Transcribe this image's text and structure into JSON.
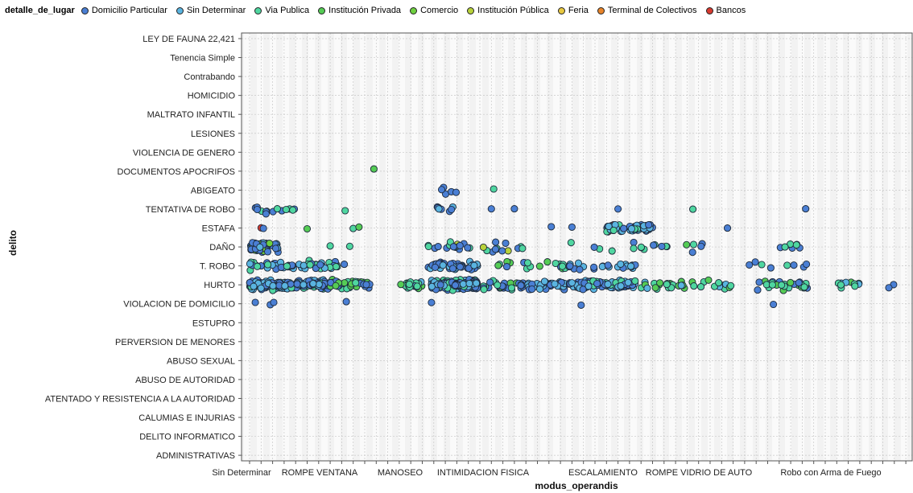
{
  "chart_data": {
    "type": "scatter",
    "xlabel": "modus_operandis",
    "ylabel": "delito",
    "legend": {
      "title": "detalle_de_lugar",
      "placement": "top-left",
      "entries": [
        {
          "name": "Domicilio Particular",
          "color": "#4a7fd4"
        },
        {
          "name": "Sin Determinar",
          "color": "#5ab4e0"
        },
        {
          "name": "Via Publica",
          "color": "#4fd6a0"
        },
        {
          "name": "Institución Privada",
          "color": "#55cc55"
        },
        {
          "name": "Comercio",
          "color": "#6ed040"
        },
        {
          "name": "Institución Pública",
          "color": "#b8d23a"
        },
        {
          "name": "Feria",
          "color": "#e8c840"
        },
        {
          "name": "Terminal de Colectivos",
          "color": "#e8842a"
        },
        {
          "name": "Bancos",
          "color": "#d83a30"
        }
      ]
    },
    "x_tick_labels": [
      "Sin Determinar",
      "ROMPE VENTANA",
      "MANOSEO",
      "INTIMIDACION FISICA",
      "ESCALAMIENTO",
      "ROMPE VIDRIO DE AUTO",
      "Robo con Arma de Fuego"
    ],
    "y_categories": [
      "LEY DE FAUNA 22,421",
      "Tenencia Simple",
      "Contrabando",
      "HOMICIDIO",
      "MALTRATO INFANTIL",
      "LESIONES",
      "VIOLENCIA DE GENERO",
      "DOCUMENTOS APOCRIFOS",
      "ABIGEATO",
      "TENTATIVA DE ROBO",
      "ESTAFA",
      "DAÑO",
      "T. ROBO",
      "HURTO",
      "VIOLACION DE DOMICILIO",
      "ESTUPRO",
      "PERVERSION DE MENORES",
      "ABUSO SEXUAL",
      "ABUSO DE AUTORIDAD",
      "ATENTADO Y RESISTENCIA A LA AUTORIDAD",
      "CALUMIAS E INJURIAS",
      "DELITO INFORMATICO",
      "ADMINISTRATIVAS"
    ],
    "grid": true,
    "jitter": true,
    "clusters": [
      {
        "delito": "HURTO",
        "x_range": [
          0.0,
          7.0
        ],
        "count": 220,
        "series": [
          "Domicilio Particular",
          "Sin Determinar",
          "Via Publica"
        ]
      },
      {
        "delito": "HURTO",
        "x_range": [
          7.0,
          10.5
        ],
        "count": 40,
        "series": [
          "Domicilio Particular",
          "Via Publica",
          "Institución Privada"
        ]
      },
      {
        "delito": "HURTO",
        "x_range": [
          13.0,
          15.0
        ],
        "count": 22,
        "series": [
          "Via Publica",
          "Institución Privada",
          "Sin Determinar"
        ]
      },
      {
        "delito": "HURTO",
        "x_range": [
          15.8,
          19.8
        ],
        "count": 200,
        "series": [
          "Domicilio Particular",
          "Sin Determinar",
          "Via Publica"
        ]
      },
      {
        "delito": "HURTO",
        "x_range": [
          20.0,
          23.5
        ],
        "count": 22,
        "series": [
          "Via Publica",
          "Domicilio Particular",
          "Institución Privada"
        ]
      },
      {
        "delito": "HURTO",
        "x_range": [
          23.5,
          27.5
        ],
        "count": 50,
        "series": [
          "Domicilio Particular",
          "Sin Determinar"
        ]
      },
      {
        "delito": "HURTO",
        "x_range": [
          27.5,
          33.5
        ],
        "count": 100,
        "series": [
          "Domicilio Particular",
          "Sin Determinar",
          "Via Publica"
        ]
      },
      {
        "delito": "HURTO",
        "x_range": [
          34.0,
          42.0
        ],
        "count": 35,
        "series": [
          "Via Publica",
          "Institución Privada",
          "Sin Determinar"
        ]
      },
      {
        "delito": "HURTO",
        "x_range": [
          44.0,
          48.5
        ],
        "count": 30,
        "series": [
          "Domicilio Particular",
          "Via Publica",
          "Institución Privada"
        ]
      },
      {
        "delito": "HURTO",
        "x_range": [
          49.5,
          53.0
        ],
        "count": 10,
        "series": [
          "Via Publica",
          "Institución Privada",
          "Sin Determinar"
        ]
      },
      {
        "delito": "HURTO",
        "x_range": [
          55.5,
          56.0
        ],
        "count": 2,
        "series": [
          "Domicilio Particular"
        ]
      },
      {
        "delito": "DAÑO",
        "x_range": [
          0.0,
          2.5
        ],
        "count": 60,
        "series": [
          "Domicilio Particular",
          "Sin Determinar",
          "Comercio"
        ]
      },
      {
        "delito": "DAÑO",
        "x_range": [
          15.5,
          24.0
        ],
        "count": 30,
        "series": [
          "Domicilio Particular",
          "Via Publica",
          "Institución Pública"
        ]
      },
      {
        "delito": "DAÑO",
        "x_range": [
          27.0,
          40.0
        ],
        "count": 18,
        "series": [
          "Domicilio Particular",
          "Via Publica",
          "Institución Privada"
        ]
      },
      {
        "delito": "DAÑO",
        "x_range": [
          43.5,
          48.5
        ],
        "count": 5,
        "series": [
          "Domicilio Particular",
          "Via Publica"
        ]
      },
      {
        "delito": "T. ROBO",
        "x_range": [
          0.0,
          8.5
        ],
        "count": 60,
        "series": [
          "Domicilio Particular",
          "Sin Determinar",
          "Via Publica"
        ]
      },
      {
        "delito": "T. ROBO",
        "x_range": [
          15.5,
          19.8
        ],
        "count": 40,
        "series": [
          "Domicilio Particular",
          "Sin Determinar"
        ]
      },
      {
        "delito": "T. ROBO",
        "x_range": [
          20.0,
          27.5
        ],
        "count": 18,
        "series": [
          "Via Publica",
          "Domicilio Particular",
          "Institución Privada"
        ]
      },
      {
        "delito": "T. ROBO",
        "x_range": [
          27.5,
          33.5
        ],
        "count": 25,
        "series": [
          "Domicilio Particular",
          "Sin Determinar"
        ]
      },
      {
        "delito": "T. ROBO",
        "x_range": [
          41.0,
          48.5
        ],
        "count": 8,
        "series": [
          "Domicilio Particular",
          "Via Publica"
        ]
      },
      {
        "delito": "ESTAFA",
        "x_range": [
          31.0,
          35.0
        ],
        "count": 70,
        "series": [
          "Domicilio Particular",
          "Sin Determinar",
          "Via Publica",
          "Bancos"
        ]
      },
      {
        "delito": "TENTATIVA DE ROBO",
        "x_range": [
          0.5,
          4.0
        ],
        "count": 14,
        "series": [
          "Domicilio Particular",
          "Via Publica"
        ]
      },
      {
        "delito": "TENTATIVA DE ROBO",
        "x_range": [
          15.5,
          18.0
        ],
        "count": 8,
        "series": [
          "Domicilio Particular",
          "Sin Determinar"
        ]
      },
      {
        "delito": "ABIGEATO",
        "x_range": [
          16.5,
          18.0
        ],
        "count": 5,
        "series": [
          "Domicilio Particular"
        ]
      }
    ],
    "points": [
      {
        "x": 1.0,
        "delito": "ESTAFA",
        "series": "Bancos"
      },
      {
        "x": 1.2,
        "delito": "ESTAFA",
        "series": "Domicilio Particular"
      },
      {
        "x": 10.8,
        "delito": "DOCUMENTOS APOCRIFOS",
        "series": "Institución Privada"
      },
      {
        "x": 8.3,
        "delito": "TENTATIVA DE ROBO",
        "series": "Via Publica"
      },
      {
        "x": 21.2,
        "delito": "ABIGEATO",
        "series": "Via Publica"
      },
      {
        "x": 21.0,
        "delito": "TENTATIVA DE ROBO",
        "series": "Domicilio Particular"
      },
      {
        "x": 23.0,
        "delito": "TENTATIVA DE ROBO",
        "series": "Domicilio Particular"
      },
      {
        "x": 26.2,
        "delito": "ESTAFA",
        "series": "Domicilio Particular"
      },
      {
        "x": 28.0,
        "delito": "ESTAFA",
        "series": "Domicilio Particular"
      },
      {
        "x": 32.0,
        "delito": "TENTATIVA DE ROBO",
        "series": "Domicilio Particular"
      },
      {
        "x": 38.5,
        "delito": "TENTATIVA DE ROBO",
        "series": "Via Publica"
      },
      {
        "x": 41.5,
        "delito": "ESTAFA",
        "series": "Domicilio Particular"
      },
      {
        "x": 48.3,
        "delito": "TENTATIVA DE ROBO",
        "series": "Domicilio Particular"
      },
      {
        "x": 5.0,
        "delito": "ESTAFA",
        "series": "Institución Privada"
      },
      {
        "x": 7.0,
        "delito": "DAÑO",
        "series": "Via Publica"
      },
      {
        "x": 8.7,
        "delito": "DAÑO",
        "series": "Via Publica"
      },
      {
        "x": 9.0,
        "delito": "ESTAFA",
        "series": "Via Publica"
      },
      {
        "x": 9.5,
        "delito": "ESTAFA",
        "series": "Institución Privada"
      },
      {
        "x": 0.5,
        "delito": "VIOLACION DE DOMICILIO",
        "series": "Domicilio Particular"
      },
      {
        "x": 1.8,
        "delito": "VIOLACION DE DOMICILIO",
        "series": "Domicilio Particular"
      },
      {
        "x": 2.1,
        "delito": "VIOLACION DE DOMICILIO",
        "series": "Domicilio Particular"
      },
      {
        "x": 8.4,
        "delito": "VIOLACION DE DOMICILIO",
        "series": "Domicilio Particular"
      },
      {
        "x": 15.8,
        "delito": "VIOLACION DE DOMICILIO",
        "series": "Domicilio Particular"
      },
      {
        "x": 28.8,
        "delito": "VIOLACION DE DOMICILIO",
        "series": "Domicilio Particular"
      },
      {
        "x": 45.5,
        "delito": "VIOLACION DE DOMICILIO",
        "series": "Domicilio Particular"
      },
      {
        "x": 35.8,
        "delito": "DAÑO",
        "series": "Domicilio Particular"
      },
      {
        "x": 46.5,
        "delito": "DAÑO",
        "series": "Via Publica"
      },
      {
        "x": 47.5,
        "delito": "DAÑO",
        "series": "Via Publica"
      }
    ]
  }
}
